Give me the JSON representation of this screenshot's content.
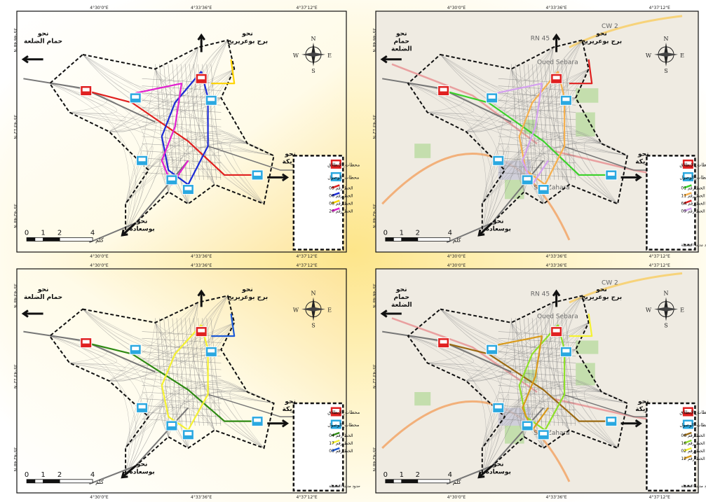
{
  "page": {
    "background_gradient": [
      "#fef6c4",
      "#ffffff"
    ]
  },
  "maps": [
    {
      "id": "top-left",
      "basemap": "plain",
      "top_ticks": [
        "4°30'0\"E",
        "4°33'36\"E",
        "4°37'12\"E"
      ],
      "bottom_ticks": [
        "4°30'0\"E",
        "4°33'36\"E",
        "4°37'12\"E"
      ],
      "left_ticks": [
        "35°46'48\"N",
        "35°43'12\"N",
        "35°42'48\"N"
      ],
      "directions": {
        "nw": [
          "نحو",
          "حمام الضلعة"
        ],
        "n": [
          "نحو",
          "برج بوعريريج"
        ],
        "e": [
          "نحو",
          "بريكة"
        ],
        "sw": [
          "نحو",
          "بوسعادة"
        ]
      },
      "legend": {
        "departure": "محطات_الإنطلاق",
        "arrival": "محطات_الوصول",
        "lines": [
          {
            "label": "الخط رقم 05",
            "color": "#e0201f"
          },
          {
            "label": "الخط رقم 06",
            "color": "#1c2bd6"
          },
          {
            "label": "الخط رقم 08",
            "color": "#ffd400"
          },
          {
            "label": "الخط رقم 20",
            "color": "#e21fd0"
          }
        ]
      },
      "scalebar": {
        "ticks": [
          "0",
          "1",
          "2",
          "4"
        ],
        "unit": "كلم"
      }
    },
    {
      "id": "top-right",
      "basemap": "osm",
      "top_ticks": [
        "4°30'0\"E",
        "4°33'36\"E",
        "4°37'12\"E"
      ],
      "bottom_ticks": [
        "4°30'0\"E",
        "4°33'36\"E",
        "4°37'12\"E"
      ],
      "left_ticks": [
        "35°46'48\"N",
        "35°43'12\"N",
        "35°42'48\"N"
      ],
      "directions": {
        "nw": [
          "نحو",
          "حمام",
          "الضلعة"
        ],
        "n": [
          "نحو",
          "برج بوعريريج"
        ],
        "e": [
          "نحو",
          "بريكة"
        ],
        "sw": [
          "نحو",
          "بوسعادة"
        ]
      },
      "legend": {
        "departure": "محطات_الإنطلاق",
        "arrival": "محطات_الوصول",
        "lines": [
          {
            "label": "الخط رقم 01",
            "color": "#3bd12a"
          },
          {
            "label": "الخط رقم 11",
            "color": "#f6b04e"
          },
          {
            "label": "الخط رقم 6A",
            "color": "#e0201f"
          },
          {
            "label": "الخط رقم 09",
            "color": "#d4a0f0"
          }
        ],
        "boundary": "حدود مدينة المسيلة"
      },
      "place_labels": [
        "Oued Sebara",
        "Sidi Zahara",
        "CW 2",
        "RN 45"
      ],
      "scalebar": {
        "ticks": [
          "0",
          "1",
          "2",
          "4"
        ],
        "unit": "كلم"
      }
    },
    {
      "id": "bottom-left",
      "basemap": "plain",
      "top_ticks": [
        "4°30'0\"E",
        "4°33'36\"E",
        "4°37'12\"E"
      ],
      "bottom_ticks": [
        "4°30'0\"E",
        "4°33'36\"E",
        "4°37'12\"E"
      ],
      "left_ticks": [
        "35°43'48\"N",
        "35°43'12\"N",
        "35°42'48\"N"
      ],
      "directions": {
        "nw": [
          "نحو",
          "حمام الضلعة"
        ],
        "n": [
          "نحو",
          "برج بوعريريج"
        ],
        "e": [
          "نحو",
          "بريكة"
        ],
        "sw": [
          "نحو",
          "بوسعادة"
        ]
      },
      "legend": {
        "departure": "محطات_الإنطلاق",
        "arrival": "محطات_الوصول",
        "lines": [
          {
            "label": "الخط رقم 04",
            "color": "#2e8a12"
          },
          {
            "label": "الخط رقم 17",
            "color": "#f5f230"
          },
          {
            "label": "الخط رقم 03",
            "color": "#1c5ad6"
          }
        ],
        "boundary": "حدود مدينة المسيلة"
      },
      "scalebar": {
        "ticks": [
          "0",
          "1",
          "2",
          "4"
        ],
        "unit": "كلم"
      }
    },
    {
      "id": "bottom-right",
      "basemap": "osm",
      "top_ticks": [
        "4°30'0\"E",
        "4°33'36\"E",
        "4°37'12\"E"
      ],
      "bottom_ticks": [
        "4°30'0\"E",
        "4°33'36\"E",
        "4°37'12\"E"
      ],
      "left_ticks": [
        "35°46'48\"N",
        "35°43'12\"N",
        "35°42'48\"N"
      ],
      "directions": {
        "nw": [
          "نحو",
          "حمام",
          "الضلعة"
        ],
        "n": [
          "نحو",
          "برج بوعريريج"
        ],
        "e": [
          "نحو",
          "بريكة"
        ],
        "sw": [
          "نحو",
          "بوسعادة"
        ]
      },
      "legend": {
        "departure": "محطات_الإنطلاق",
        "arrival": "محطات_الوصول",
        "lines": [
          {
            "label": "الخط رقم 06",
            "color": "#9b6a12"
          },
          {
            "label": "الخط رقم 16",
            "color": "#8fe02a"
          },
          {
            "label": "الخط رقم 02",
            "color": "#f5f230"
          },
          {
            "label": "الخط رقم 12",
            "color": "#d99a1a"
          }
        ],
        "boundary": "حدود مدينة المسيلة"
      },
      "place_labels": [
        "Oued Sebara",
        "Sidi Zahara",
        "CW 2",
        "RN 45"
      ],
      "scalebar": {
        "ticks": [
          "0",
          "1",
          "2",
          "4"
        ],
        "unit": "كلم"
      }
    }
  ]
}
